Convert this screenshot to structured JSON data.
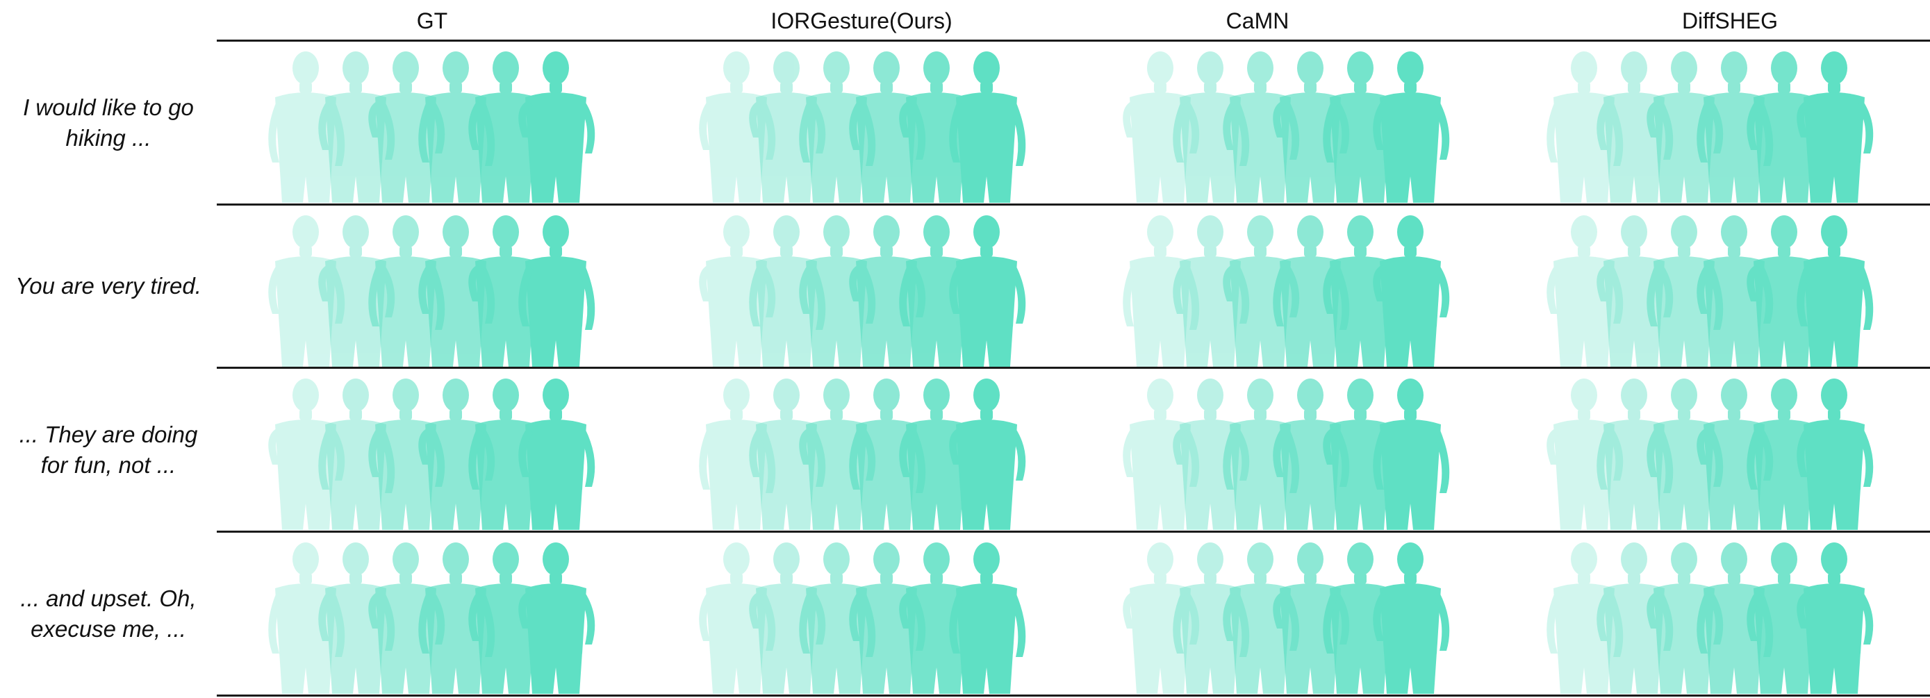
{
  "columns": [
    "GT",
    "IORGesture(Ours)",
    "CaMN",
    "DiffSHEG"
  ],
  "rows": [
    {
      "label_lines": [
        "I would like to go",
        "hiking ..."
      ]
    },
    {
      "label_lines": [
        "You are very tired."
      ]
    },
    {
      "label_lines": [
        "... They are doing",
        "for fun, not ..."
      ]
    },
    {
      "label_lines": [
        "... and upset. Oh,",
        "execuse me, ..."
      ]
    }
  ],
  "figure": {
    "body_color": "#5fe0c4",
    "frames_per_panel": 6
  }
}
